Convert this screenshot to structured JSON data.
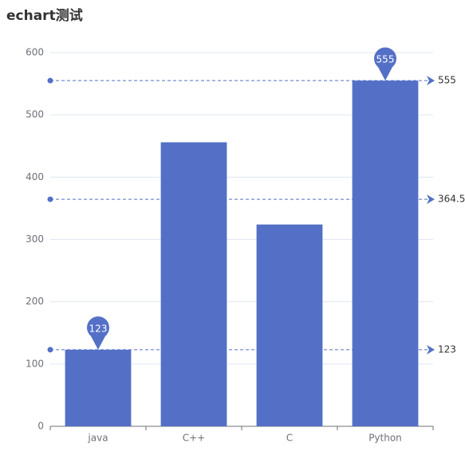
{
  "chart_data": {
    "type": "bar",
    "title": "echart测试",
    "categories": [
      "java",
      "C++",
      "C",
      "Python"
    ],
    "values": [
      123,
      456,
      324,
      555
    ],
    "color": "#5470c6",
    "ylim": [
      0,
      600
    ],
    "yticks": [
      0,
      100,
      200,
      300,
      400,
      500,
      600
    ],
    "grid": true,
    "mark_lines": [
      555,
      364.5,
      123
    ]
  }
}
